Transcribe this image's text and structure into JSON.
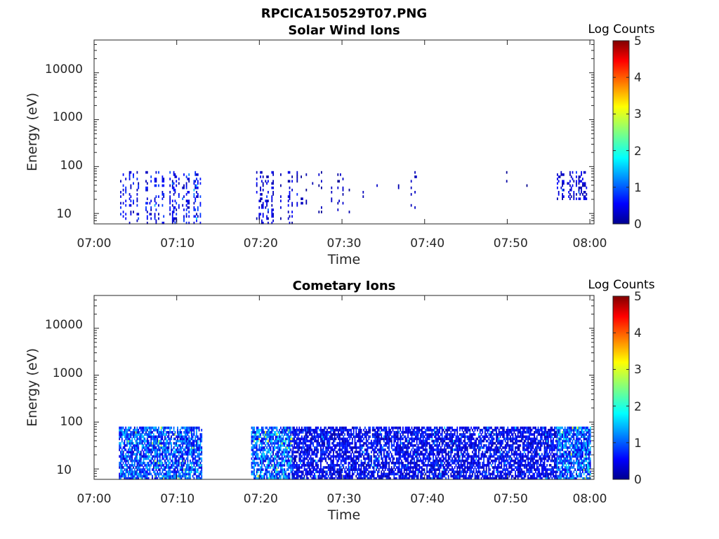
{
  "figure_title": "RPCICA150529T07.PNG",
  "chart_data": [
    {
      "type": "heatmap",
      "title": "Solar Wind Ions",
      "xlabel": "Time",
      "ylabel": "Energy (eV)",
      "yscale": "log",
      "x_range": [
        "07:00",
        "08:00"
      ],
      "ylim": [
        6,
        50000
      ],
      "x_ticks": [
        "07:00",
        "07:10",
        "07:20",
        "07:30",
        "07:40",
        "07:50",
        "08:00"
      ],
      "y_ticks": [
        "10",
        "100",
        "1000",
        "10000"
      ],
      "colorbar": {
        "label": "Log Counts",
        "range": [
          0,
          5
        ],
        "ticks": [
          "0",
          "1",
          "2",
          "3",
          "4",
          "5"
        ],
        "colormap": "jet"
      },
      "energy_range_of_signal": [
        6,
        80
      ],
      "activity_intervals": [
        {
          "start": "07:03",
          "end": "07:13",
          "emin": 6,
          "emax": 80,
          "level": 0.7,
          "density": 0.35
        },
        {
          "start": "07:19",
          "end": "07:25",
          "emin": 6,
          "emax": 80,
          "level": 0.5,
          "density": 0.3
        },
        {
          "start": "07:25",
          "end": "07:39",
          "emin": 10,
          "emax": 80,
          "level": 0.3,
          "density": 0.12
        },
        {
          "start": "07:39",
          "end": "07:53",
          "emin": 30,
          "emax": 80,
          "level": 0.2,
          "density": 0.05
        },
        {
          "start": "07:56",
          "end": "08:00",
          "emin": 20,
          "emax": 80,
          "level": 0.5,
          "density": 0.35
        }
      ]
    },
    {
      "type": "heatmap",
      "title": "Cometary Ions",
      "xlabel": "Time",
      "ylabel": "Energy (eV)",
      "yscale": "log",
      "x_range": [
        "07:00",
        "08:00"
      ],
      "ylim": [
        6,
        50000
      ],
      "x_ticks": [
        "07:00",
        "07:10",
        "07:20",
        "07:30",
        "07:40",
        "07:50",
        "08:00"
      ],
      "y_ticks": [
        "10",
        "100",
        "1000",
        "10000"
      ],
      "colorbar": {
        "label": "Log Counts",
        "range": [
          0,
          5
        ],
        "ticks": [
          "0",
          "1",
          "2",
          "3",
          "4",
          "5"
        ],
        "colormap": "jet"
      },
      "energy_range_of_signal": [
        6,
        80
      ],
      "activity_intervals": [
        {
          "start": "07:03",
          "end": "07:13",
          "emin": 6,
          "emax": 80,
          "level": 1.2,
          "density": 0.75
        },
        {
          "start": "07:19",
          "end": "07:24",
          "emin": 6,
          "emax": 80,
          "level": 1.3,
          "density": 0.75
        },
        {
          "start": "07:24",
          "end": "07:56",
          "emin": 6,
          "emax": 80,
          "level": 0.7,
          "density": 0.7
        },
        {
          "start": "07:56",
          "end": "08:00",
          "emin": 6,
          "emax": 80,
          "level": 1.3,
          "density": 0.8
        }
      ]
    }
  ]
}
